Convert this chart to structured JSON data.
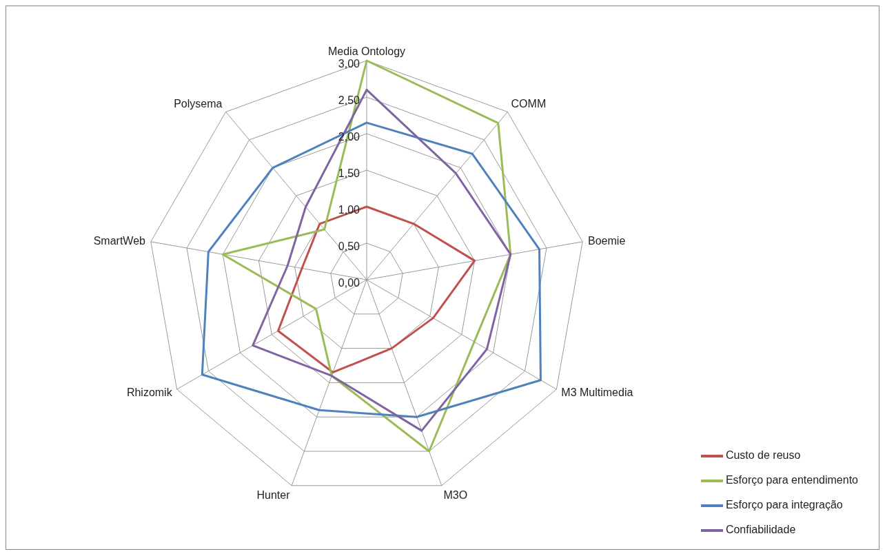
{
  "chart_data": {
    "type": "radar",
    "categories": [
      "Media Ontology",
      "COMM",
      "Boemie",
      "M3 Multimedia",
      "M3O",
      "Hunter",
      "Rhizomik",
      "SmartWeb",
      "Polysema"
    ],
    "ylim": [
      0,
      3
    ],
    "yticks": [
      {
        "value": 0,
        "label": "0,00"
      },
      {
        "value": 0.5,
        "label": "0,50"
      },
      {
        "value": 1,
        "label": "1,00"
      },
      {
        "value": 1.5,
        "label": "1,50"
      },
      {
        "value": 2,
        "label": "2,00"
      },
      {
        "value": 2.5,
        "label": "2,50"
      },
      {
        "value": 3,
        "label": "3,00"
      }
    ],
    "grid": true,
    "legend": "bottom right",
    "marker": "none",
    "series": [
      {
        "name": "Custo de reuso",
        "color": "#c0504d",
        "values": [
          1.0,
          1.0,
          1.5,
          1.05,
          1.0,
          1.35,
          1.4,
          0.9,
          1.0
        ]
      },
      {
        "name": "Esforço para entendimento",
        "color": "#9bbb59",
        "values": [
          3.0,
          2.8,
          2.0,
          1.7,
          2.5,
          1.4,
          0.8,
          2.0,
          0.9
        ]
      },
      {
        "name": "Esforço para integração",
        "color": "#4f81bd",
        "values": [
          2.15,
          2.25,
          2.4,
          2.75,
          2.0,
          1.9,
          2.6,
          2.2,
          2.0
        ]
      },
      {
        "name": "Confiabilidade",
        "color": "#8064a2",
        "values": [
          2.6,
          1.9,
          2.0,
          1.9,
          2.2,
          1.4,
          1.8,
          1.1,
          1.3
        ]
      }
    ]
  }
}
